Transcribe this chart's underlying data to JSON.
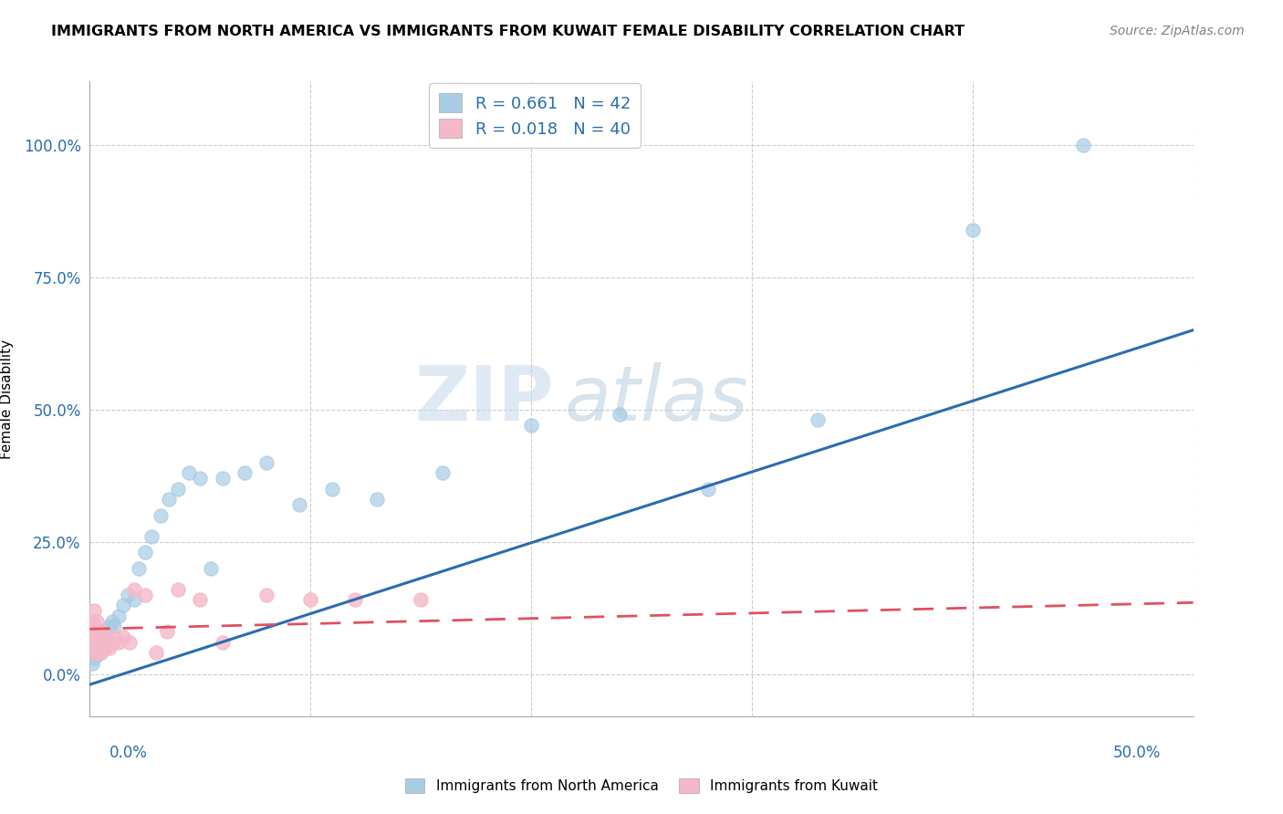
{
  "title": "IMMIGRANTS FROM NORTH AMERICA VS IMMIGRANTS FROM KUWAIT FEMALE DISABILITY CORRELATION CHART",
  "source": "Source: ZipAtlas.com",
  "ylabel": "Female Disability",
  "blue_R": 0.661,
  "blue_N": 42,
  "pink_R": 0.018,
  "pink_N": 40,
  "blue_color": "#a8cce4",
  "pink_color": "#f4b8c8",
  "blue_line_color": "#2b6cb0",
  "pink_line_color": "#e05060",
  "legend_label_blue": "Immigrants from North America",
  "legend_label_pink": "Immigrants from Kuwait",
  "watermark_zip": "ZIP",
  "watermark_atlas": "atlas",
  "blue_x": [
    0.001,
    0.002,
    0.002,
    0.003,
    0.003,
    0.004,
    0.004,
    0.005,
    0.005,
    0.006,
    0.006,
    0.007,
    0.008,
    0.009,
    0.01,
    0.011,
    0.013,
    0.015,
    0.017,
    0.02,
    0.022,
    0.025,
    0.028,
    0.032,
    0.036,
    0.04,
    0.045,
    0.05,
    0.055,
    0.06,
    0.07,
    0.08,
    0.095,
    0.11,
    0.13,
    0.16,
    0.2,
    0.24,
    0.28,
    0.33,
    0.4,
    0.45
  ],
  "blue_y": [
    0.02,
    0.03,
    0.04,
    0.035,
    0.05,
    0.04,
    0.06,
    0.05,
    0.07,
    0.055,
    0.08,
    0.075,
    0.085,
    0.09,
    0.1,
    0.09,
    0.11,
    0.13,
    0.15,
    0.14,
    0.2,
    0.23,
    0.26,
    0.3,
    0.33,
    0.35,
    0.38,
    0.37,
    0.2,
    0.37,
    0.38,
    0.4,
    0.32,
    0.35,
    0.33,
    0.38,
    0.47,
    0.49,
    0.35,
    0.48,
    0.84,
    1.0
  ],
  "pink_x": [
    0.001,
    0.001,
    0.001,
    0.001,
    0.002,
    0.002,
    0.002,
    0.002,
    0.003,
    0.003,
    0.003,
    0.003,
    0.004,
    0.004,
    0.004,
    0.005,
    0.005,
    0.005,
    0.006,
    0.006,
    0.007,
    0.007,
    0.008,
    0.009,
    0.01,
    0.011,
    0.013,
    0.015,
    0.018,
    0.02,
    0.025,
    0.03,
    0.035,
    0.04,
    0.05,
    0.06,
    0.08,
    0.1,
    0.12,
    0.15
  ],
  "pink_y": [
    0.05,
    0.06,
    0.08,
    0.1,
    0.04,
    0.07,
    0.09,
    0.12,
    0.04,
    0.06,
    0.08,
    0.1,
    0.04,
    0.06,
    0.08,
    0.04,
    0.06,
    0.08,
    0.05,
    0.07,
    0.05,
    0.07,
    0.06,
    0.05,
    0.06,
    0.07,
    0.06,
    0.07,
    0.06,
    0.16,
    0.15,
    0.04,
    0.08,
    0.16,
    0.14,
    0.06,
    0.15,
    0.14,
    0.14,
    0.14
  ],
  "xlim": [
    0.0,
    0.5
  ],
  "ylim": [
    -0.08,
    1.12
  ],
  "yticks": [
    0.0,
    0.25,
    0.5,
    0.75,
    1.0
  ],
  "ytick_labels": [
    "0.0%",
    "25.0%",
    "50.0%",
    "75.0%",
    "100.0%"
  ],
  "xtick_positions": [
    0.0,
    0.1,
    0.2,
    0.3,
    0.4,
    0.5
  ],
  "grid_color": "#cccccc",
  "background_color": "#ffffff",
  "blue_trend_x0": 0.0,
  "blue_trend_y0": -0.02,
  "blue_trend_x1": 0.5,
  "blue_trend_y1": 0.65,
  "pink_trend_x0": 0.0,
  "pink_trend_y0": 0.085,
  "pink_trend_x1": 0.5,
  "pink_trend_y1": 0.135
}
